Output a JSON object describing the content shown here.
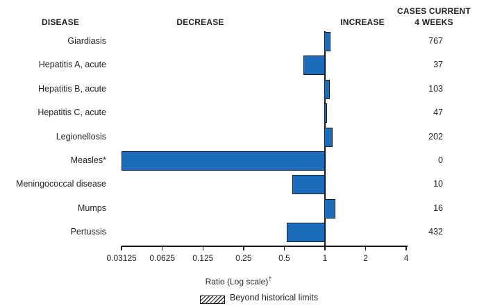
{
  "header": {
    "disease": "DISEASE",
    "decrease": "DECREASE",
    "increase": "INCREASE",
    "cases_line1": "CASES CURRENT",
    "cases_line2": "4 WEEKS"
  },
  "chart_data": {
    "type": "bar",
    "orientation": "horizontal",
    "scale": "log2",
    "baseline_ratio": 1,
    "xlabel": "Ratio (Log scale)",
    "xlabel_suffix": "†",
    "xlim": [
      0.03125,
      4
    ],
    "tick_labels": [
      "0.03125",
      "0.0625",
      "0.125",
      "0.25",
      "0.5",
      "1",
      "2",
      "4"
    ],
    "tick_values": [
      0.03125,
      0.0625,
      0.125,
      0.25,
      0.5,
      1,
      2,
      4
    ],
    "grid": false,
    "legend": {
      "position": "bottom",
      "items": [
        {
          "label": "Beyond historical limits",
          "style": "hatched"
        }
      ]
    },
    "rows": [
      {
        "disease": "Giardiasis",
        "ratio": 1.11,
        "direction": "increase",
        "cases": "767",
        "beyond_historical_limits": false
      },
      {
        "disease": "Hepatitis A, acute",
        "ratio": 0.69,
        "direction": "decrease",
        "cases": "37",
        "beyond_historical_limits": false
      },
      {
        "disease": "Hepatitis B, acute",
        "ratio": 1.1,
        "direction": "increase",
        "cases": "103",
        "beyond_historical_limits": false
      },
      {
        "disease": "Hepatitis C, acute",
        "ratio": 1.05,
        "direction": "increase",
        "cases": "47",
        "beyond_historical_limits": false
      },
      {
        "disease": "Legionellosis",
        "ratio": 1.15,
        "direction": "increase",
        "cases": "202",
        "beyond_historical_limits": false
      },
      {
        "disease": "Measles*",
        "ratio": 0.03125,
        "direction": "decrease",
        "cases": "0",
        "beyond_historical_limits": false
      },
      {
        "disease": "Meningococcal disease",
        "ratio": 0.57,
        "direction": "decrease",
        "cases": "10",
        "beyond_historical_limits": false
      },
      {
        "disease": "Mumps",
        "ratio": 1.2,
        "direction": "increase",
        "cases": "16",
        "beyond_historical_limits": false
      },
      {
        "disease": "Pertussis",
        "ratio": 0.52,
        "direction": "decrease",
        "cases": "432",
        "beyond_historical_limits": false
      }
    ],
    "colors": {
      "bar_fill": "#1b6dbc",
      "bar_border": "#1b1b1b",
      "text": "#231f20",
      "background": "#ffffff"
    }
  }
}
